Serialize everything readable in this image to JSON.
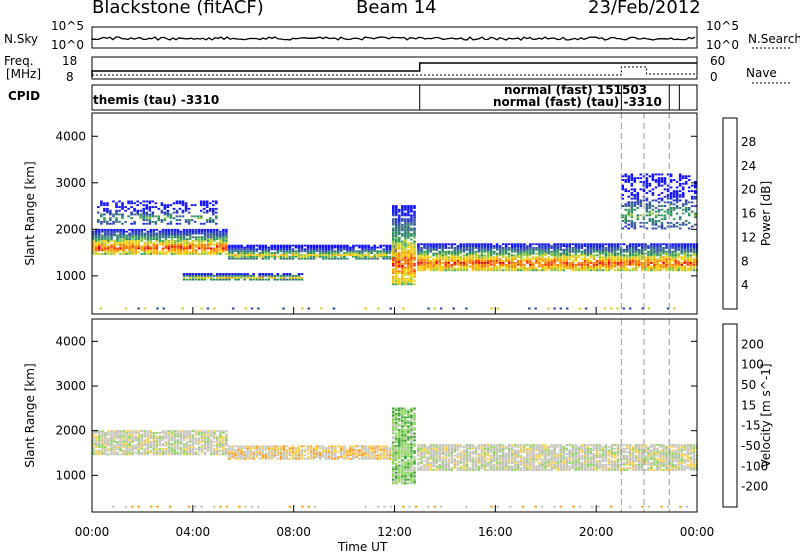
{
  "header": {
    "radar": "Blackstone (fitACF)",
    "beam": "Beam 14",
    "date": "23/Feb/2012"
  },
  "nsky_panel": {
    "left_label": "N.Sky",
    "left_ticks": [
      "10^5",
      "10^0"
    ],
    "right_ticks": [
      "10^5",
      "10^0"
    ],
    "right_label": "N.Search"
  },
  "freq_panel": {
    "left_label_1": "Freq.",
    "left_label_2": "[MHz]",
    "left_ticks": [
      "18",
      "8"
    ],
    "right_ticks": [
      "60",
      "0"
    ],
    "right_label": "Nave"
  },
  "cpid_panel": {
    "label": "CPID",
    "entries": [
      "themis (tau) -3310",
      "normal (fast) 151503",
      "normal (fast) (tau) -3310"
    ]
  },
  "x_axis": {
    "title": "Time UT",
    "ticks": [
      "00:00",
      "04:00",
      "08:00",
      "12:00",
      "16:00",
      "20:00",
      "00:00"
    ]
  },
  "chart_data": [
    {
      "type": "heatmap",
      "title": "Power",
      "xlabel": "Time UT",
      "ylabel": "Slant Range [km]",
      "xlim_hours": [
        0,
        24
      ],
      "ylim_km": [
        180,
        4500
      ],
      "y_ticks": [
        "1000",
        "2000",
        "3000",
        "4000"
      ],
      "colorbar": {
        "label": "Power [dB]",
        "ticks": [
          "28",
          "24",
          "20",
          "16",
          "12",
          "8",
          "4"
        ],
        "colors": [
          "#e60000",
          "#ff3800",
          "#ff7a00",
          "#ffa500",
          "#ffd000",
          "#d6ce28",
          "#8cc63f",
          "#3aa35c",
          "#2e8b57",
          "#2d7a78",
          "#3e5f9a",
          "#2e47b0",
          "#1f2fd6",
          "#1010ff"
        ]
      },
      "echo_bands": [
        {
          "t_start": 0.0,
          "t_end": 5.4,
          "r_start": 1450,
          "r_end": 2000,
          "strength": "strong"
        },
        {
          "t_start": 0.2,
          "t_end": 5.0,
          "r_start": 2100,
          "r_end": 2600,
          "strength": "weak"
        },
        {
          "t_start": 5.4,
          "t_end": 12.0,
          "r_start": 1350,
          "r_end": 1650,
          "strength": "moderate"
        },
        {
          "t_start": 3.6,
          "t_end": 8.4,
          "r_start": 900,
          "r_end": 1050,
          "strength": "moderate"
        },
        {
          "t_start": 11.9,
          "t_end": 12.8,
          "r_start": 800,
          "r_end": 2500,
          "strength": "strong"
        },
        {
          "t_start": 12.9,
          "t_end": 24.0,
          "r_start": 1100,
          "r_end": 1700,
          "strength": "strong"
        },
        {
          "t_start": 21.0,
          "t_end": 24.0,
          "r_start": 2000,
          "r_end": 3200,
          "strength": "weak"
        }
      ]
    },
    {
      "type": "heatmap",
      "title": "Velocity",
      "xlabel": "Time UT",
      "ylabel": "Slant Range [km]",
      "xlim_hours": [
        0,
        24
      ],
      "ylim_km": [
        180,
        4500
      ],
      "y_ticks": [
        "1000",
        "2000",
        "3000",
        "4000"
      ],
      "colorbar": {
        "label": "Velocity [m s^-1]",
        "ticks": [
          "200",
          "100",
          "50",
          "15",
          "-15",
          "-50",
          "-100",
          "-200"
        ],
        "colors": [
          "#1e2fd0",
          "#2e5fae",
          "#2f8f6a",
          "#3aa33a",
          "#8ed65c",
          "#c8c8be",
          "#c8c8be",
          "#ffd24d",
          "#ffa020",
          "#ff7a00",
          "#ff4a00",
          "#e60000"
        ]
      },
      "echo_bands": [
        {
          "t_start": 0.0,
          "t_end": 5.4,
          "r_start": 1450,
          "r_end": 2000,
          "velocity": "near-zero"
        },
        {
          "t_start": 5.4,
          "t_end": 12.0,
          "r_start": 1350,
          "r_end": 1650,
          "velocity": "-15 to -50"
        },
        {
          "t_start": 11.9,
          "t_end": 12.8,
          "r_start": 800,
          "r_end": 2500,
          "velocity": "15 to 50"
        },
        {
          "t_start": 12.9,
          "t_end": 24.0,
          "r_start": 1100,
          "r_end": 1700,
          "velocity": "near-zero"
        }
      ]
    }
  ]
}
